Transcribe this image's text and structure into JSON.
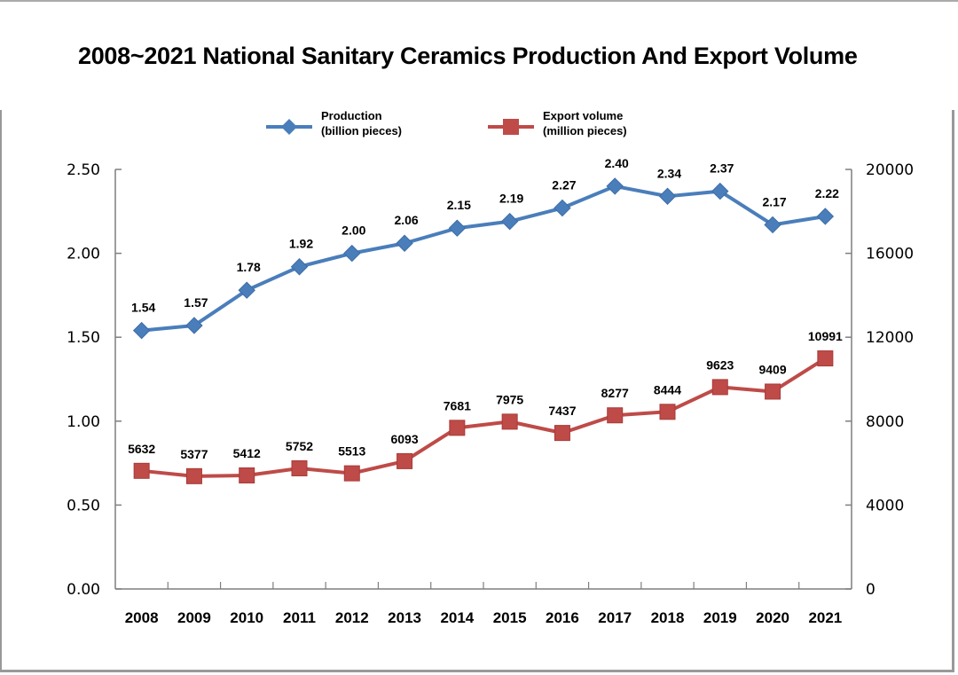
{
  "chart_data": {
    "type": "line",
    "title": "2008~2021 National Sanitary Ceramics Production And Export Volume",
    "categories": [
      "2008",
      "2009",
      "2010",
      "2011",
      "2012",
      "2013",
      "2014",
      "2015",
      "2016",
      "2017",
      "2018",
      "2019",
      "2020",
      "2021"
    ],
    "series": [
      {
        "name": "Production",
        "legend_lines": [
          "Production",
          "(billion pieces)"
        ],
        "axis": "left",
        "color": "#4a7ebb",
        "marker": "diamond",
        "values": [
          1.54,
          1.57,
          1.78,
          1.92,
          2.0,
          2.06,
          2.15,
          2.19,
          2.27,
          2.4,
          2.34,
          2.37,
          2.17,
          2.22
        ],
        "labels": [
          "1.54",
          "1.57",
          "1.78",
          "1.92",
          "2.00",
          "2.06",
          "2.15",
          "2.19",
          "2.27",
          "2.40",
          "2.34",
          "2.37",
          "2.17",
          "2.22"
        ]
      },
      {
        "name": "Export volume",
        "legend_lines": [
          "Export volume",
          "(million pieces)"
        ],
        "axis": "right",
        "color": "#be4b48",
        "marker": "square",
        "values": [
          5632,
          5377,
          5412,
          5752,
          5513,
          6093,
          7681,
          7975,
          7437,
          8277,
          8444,
          9623,
          9409,
          10991
        ],
        "labels": [
          "5632",
          "5377",
          "5412",
          "5752",
          "5513",
          "6093",
          "7681",
          "7975",
          "7437",
          "8277",
          "8444",
          "9623",
          "9409",
          "10991"
        ]
      }
    ],
    "y_left": {
      "ylim": [
        0,
        2.5
      ],
      "ticks": [
        "0.00",
        "0.50",
        "1.00",
        "1.50",
        "2.00",
        "2.50"
      ],
      "tick_values": [
        0,
        0.5,
        1.0,
        1.5,
        2.0,
        2.5
      ]
    },
    "y_right": {
      "ylim": [
        0,
        20000
      ],
      "ticks": [
        "0",
        "4000",
        "8000",
        "12000",
        "16000",
        "20000"
      ],
      "tick_values": [
        0,
        4000,
        8000,
        12000,
        16000,
        20000
      ]
    },
    "xlabel": "",
    "ylabel": "",
    "grid": false,
    "legend_position": "top-center"
  }
}
